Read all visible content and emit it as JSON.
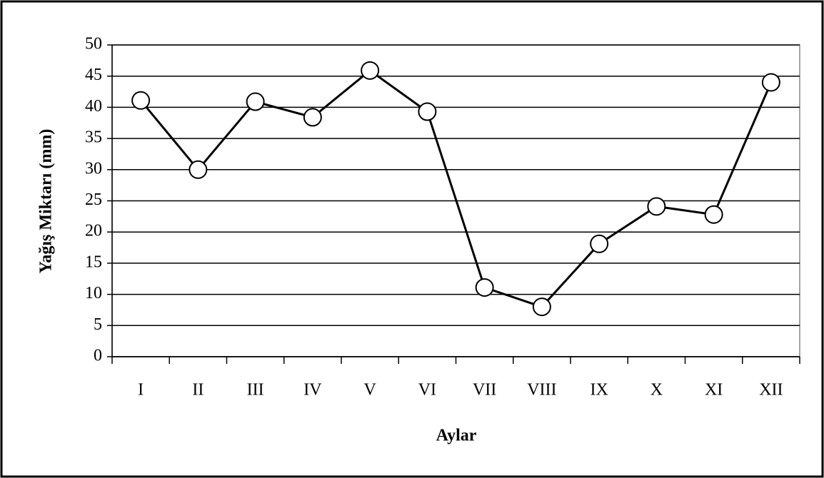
{
  "chart_data": {
    "type": "line",
    "xlabel": "Aylar",
    "ylabel": "Yağış Miktarı (mm)",
    "categories": [
      "I",
      "II",
      "III",
      "IV",
      "V",
      "VI",
      "VII",
      "VIII",
      "IX",
      "X",
      "XI",
      "XII"
    ],
    "series": [
      {
        "name": "Yağış",
        "color": "#000000",
        "values": [
          41.1,
          30,
          40.9,
          38.4,
          45.9,
          39.3,
          11.1,
          8,
          18.1,
          24.1,
          22.8,
          44
        ]
      }
    ],
    "ylim": [
      0,
      50
    ],
    "yticks": [
      0,
      5,
      10,
      15,
      20,
      25,
      30,
      35,
      40,
      45,
      50
    ],
    "grid": true
  }
}
